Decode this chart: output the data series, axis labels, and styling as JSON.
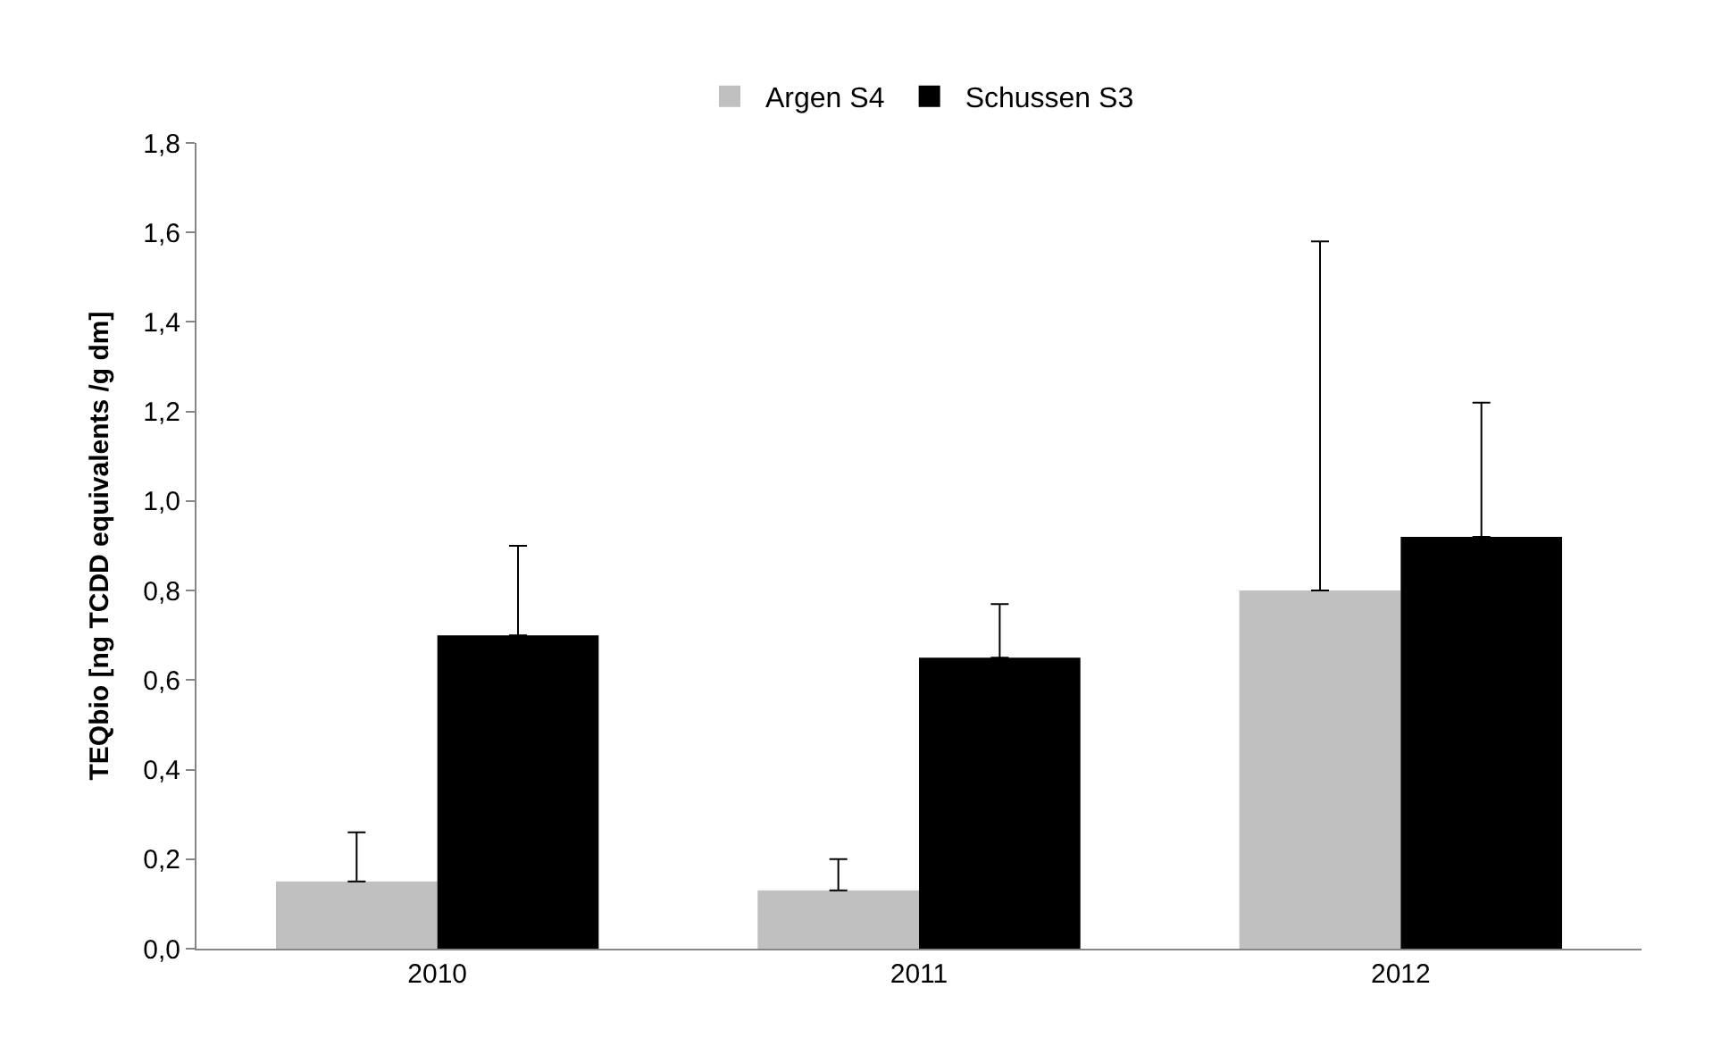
{
  "chart_data": {
    "type": "bar",
    "ylabel": "TEQbio [ng TCDD equivalents /g dm]",
    "categories": [
      "2010",
      "2011",
      "2012"
    ],
    "series": [
      {
        "name": "Argen S4",
        "color": "#c0c0c0",
        "values": [
          0.15,
          0.13,
          0.8
        ],
        "errors": [
          [
            0.15,
            0.26
          ],
          [
            0.13,
            0.2
          ],
          [
            0.8,
            1.58
          ]
        ]
      },
      {
        "name": "Schussen S3",
        "color": "#000000",
        "values": [
          0.7,
          0.65,
          0.92
        ],
        "errors": [
          [
            0.7,
            0.9
          ],
          [
            0.65,
            0.77
          ],
          [
            0.92,
            1.22
          ]
        ]
      }
    ],
    "ylim": [
      0,
      1.8
    ],
    "yticks": [
      {
        "value": 0,
        "label": "0,0"
      },
      {
        "value": 0.2,
        "label": "0,2"
      },
      {
        "value": 0.4,
        "label": "0,4"
      },
      {
        "value": 0.6,
        "label": "0,6"
      },
      {
        "value": 0.8,
        "label": "0,8"
      },
      {
        "value": 1.0,
        "label": "1,0"
      },
      {
        "value": 1.2,
        "label": "1,2"
      },
      {
        "value": 1.4,
        "label": "1,4"
      },
      {
        "value": 1.6,
        "label": "1,6"
      },
      {
        "value": 1.8,
        "label": "1,8"
      }
    ],
    "legend": "top"
  }
}
